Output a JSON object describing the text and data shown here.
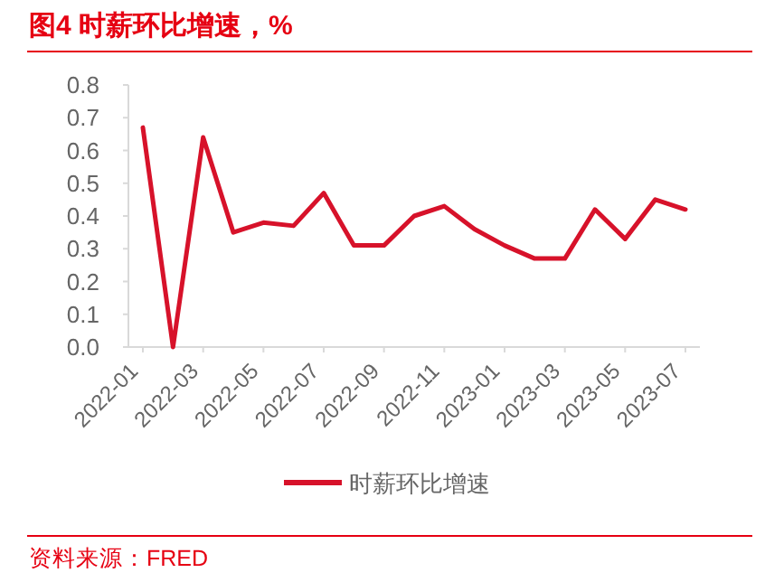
{
  "chart_data": {
    "type": "line",
    "title": "图4  时薪环比增速，%",
    "categories": [
      "2022-01",
      null,
      "2022-03",
      null,
      "2022-05",
      null,
      "2022-07",
      null,
      "2022-09",
      null,
      "2022-11",
      null,
      "2023-01",
      null,
      "2023-03",
      null,
      "2023-05",
      null,
      "2023-07"
    ],
    "series": [
      {
        "name": "时薪环比增速",
        "color": "#d7122a",
        "values": [
          0.67,
          0.0,
          0.64,
          0.35,
          0.38,
          0.37,
          0.47,
          0.31,
          0.31,
          0.4,
          0.43,
          0.36,
          0.31,
          0.27,
          0.27,
          0.42,
          0.33,
          0.45,
          0.42
        ]
      }
    ],
    "ylim": [
      0,
      0.8
    ],
    "yticks": [
      {
        "value": 0,
        "label": "0.0"
      },
      {
        "value": 0.1,
        "label": "0.1"
      },
      {
        "value": 0.2,
        "label": "0.2"
      },
      {
        "value": 0.3,
        "label": "0.3"
      },
      {
        "value": 0.4,
        "label": "0.4"
      },
      {
        "value": 0.5,
        "label": "0.5"
      },
      {
        "value": 0.6,
        "label": "0.6"
      },
      {
        "value": 0.7,
        "label": "0.7"
      },
      {
        "value": 0.8,
        "label": "0.8"
      }
    ],
    "legend": "bottom",
    "annotations": [
      "资料来源：FRED"
    ]
  }
}
